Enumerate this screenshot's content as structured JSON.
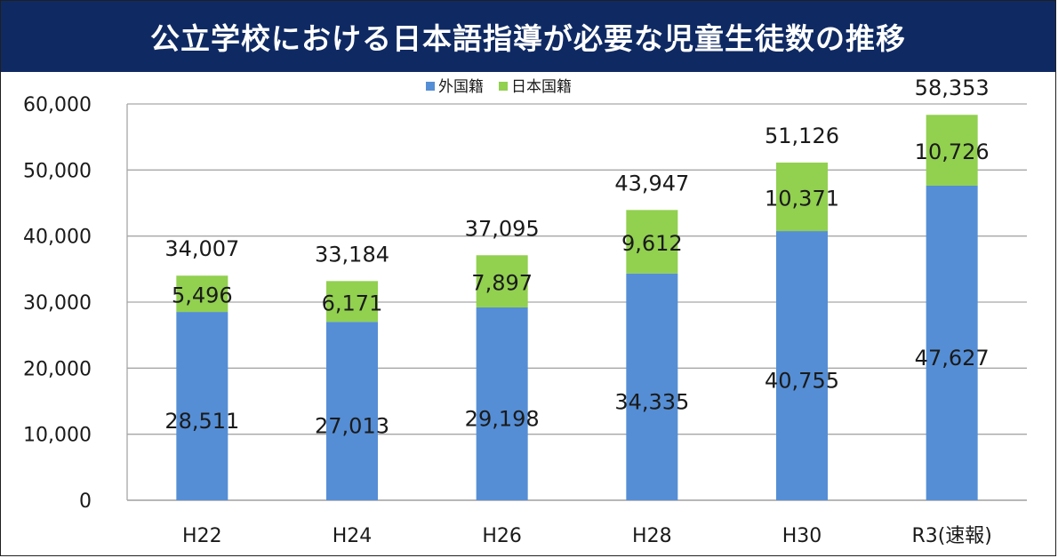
{
  "title": "公立学校における日本語指導が必要な児童生徒数の推移",
  "chart_data": {
    "type": "bar",
    "stacked": true,
    "categories": [
      "H22",
      "H24",
      "H26",
      "H28",
      "H30",
      "R3(速報)"
    ],
    "series": [
      {
        "name": "外国籍",
        "color": "#558ed5",
        "values": [
          28511,
          27013,
          29198,
          34335,
          40755,
          47627
        ],
        "labels": [
          "28,511",
          "27,013",
          "29,198",
          "34,335",
          "40,755",
          "47,627"
        ]
      },
      {
        "name": "日本国籍",
        "color": "#92d050",
        "values": [
          5496,
          6171,
          7897,
          9612,
          10371,
          10726
        ],
        "labels": [
          "5,496",
          "6,171",
          "7,897",
          "9,612",
          "10,371",
          "10,726"
        ]
      }
    ],
    "totals": [
      34007,
      33184,
      37095,
      43947,
      51126,
      58353
    ],
    "total_labels": [
      "34,007",
      "33,184",
      "37,095",
      "43,947",
      "51,126",
      "58,353"
    ],
    "ylim": [
      0,
      60000
    ],
    "y_ticks": [
      0,
      10000,
      20000,
      30000,
      40000,
      50000,
      60000
    ],
    "y_tick_labels": [
      "0",
      "10,000",
      "20,000",
      "30,000",
      "40,000",
      "50,000",
      "60,000"
    ],
    "grid": true,
    "legend_position": "top-center"
  }
}
